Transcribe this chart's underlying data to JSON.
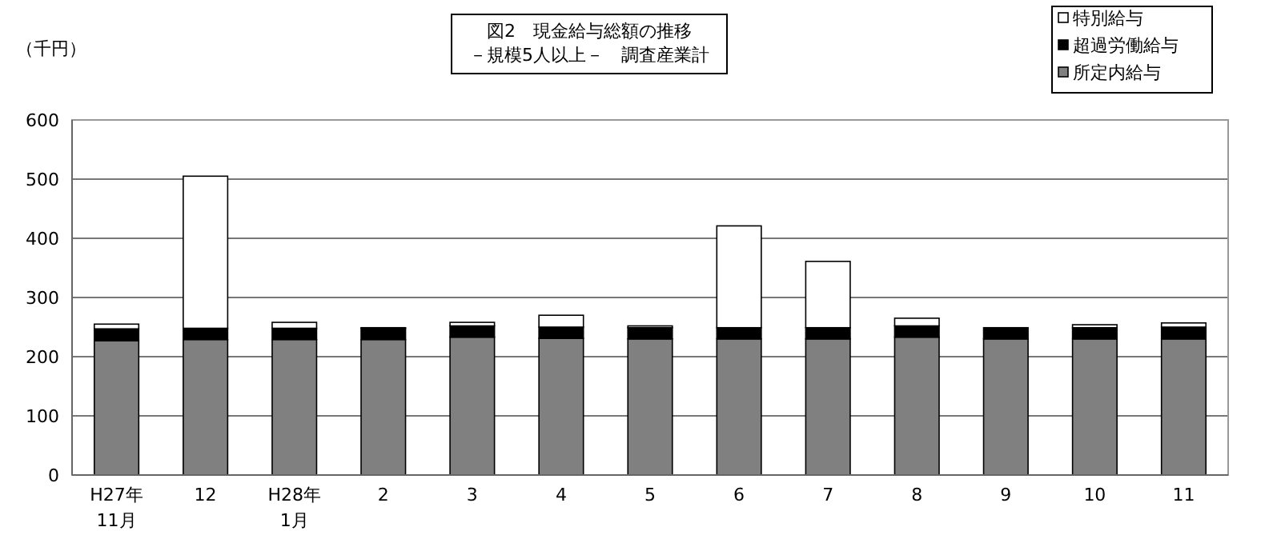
{
  "chart_data": {
    "type": "bar",
    "title": "図2　現金給与総額の推移",
    "subtitle": "－規模5人以上－　調査産業計",
    "ylabel": "（千円）",
    "stacked": true,
    "grid": "y",
    "legend": "top right",
    "categories": [
      "H27年\n11月",
      "12",
      "H28年\n1月",
      "2",
      "3",
      "4",
      "5",
      "6",
      "7",
      "8",
      "9",
      "10",
      "11"
    ],
    "ylim": [
      0,
      600
    ],
    "yticks": [
      0,
      100,
      200,
      300,
      400,
      500,
      600
    ],
    "series": [
      {
        "name": "所定内給与",
        "color": "#808080",
        "values": [
          227,
          229,
          229,
          229,
          233,
          231,
          230,
          230,
          230,
          233,
          230,
          230,
          230
        ]
      },
      {
        "name": "超過労働給与",
        "color": "#000000",
        "values": [
          20,
          19,
          19,
          19,
          19,
          19,
          19,
          19,
          19,
          19,
          19,
          19,
          20
        ]
      },
      {
        "name": "特別給与",
        "color": "#ffffff",
        "values": [
          8,
          257,
          10,
          1,
          6,
          20,
          3,
          172,
          112,
          13,
          null,
          5,
          7
        ]
      }
    ]
  }
}
